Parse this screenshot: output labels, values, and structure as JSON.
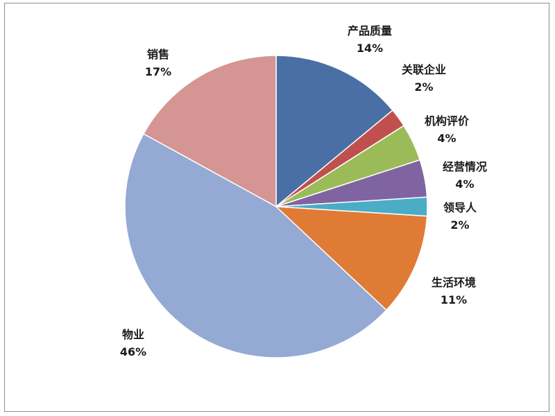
{
  "chart_data": {
    "type": "pie",
    "title": "",
    "start_angle_deg": 0,
    "direction": "clockwise",
    "legend": "none",
    "slices": [
      {
        "label": "产品质量",
        "value": 14,
        "display": "14%",
        "color": "#4a6fa5"
      },
      {
        "label": "关联企业",
        "value": 2,
        "display": "2%",
        "color": "#c0504d"
      },
      {
        "label": "机构评价",
        "value": 4,
        "display": "4%",
        "color": "#9bbb59"
      },
      {
        "label": "经营情况",
        "value": 4,
        "display": "4%",
        "color": "#8064a2"
      },
      {
        "label": "领导人",
        "value": 2,
        "display": "2%",
        "color": "#4bacc6"
      },
      {
        "label": "生活环境",
        "value": 11,
        "display": "11%",
        "color": "#e07b35"
      },
      {
        "label": "物业",
        "value": 46,
        "display": "46%",
        "color": "#94a9d4"
      },
      {
        "label": "销售",
        "value": 17,
        "display": "17%",
        "color": "#d49593"
      }
    ]
  }
}
